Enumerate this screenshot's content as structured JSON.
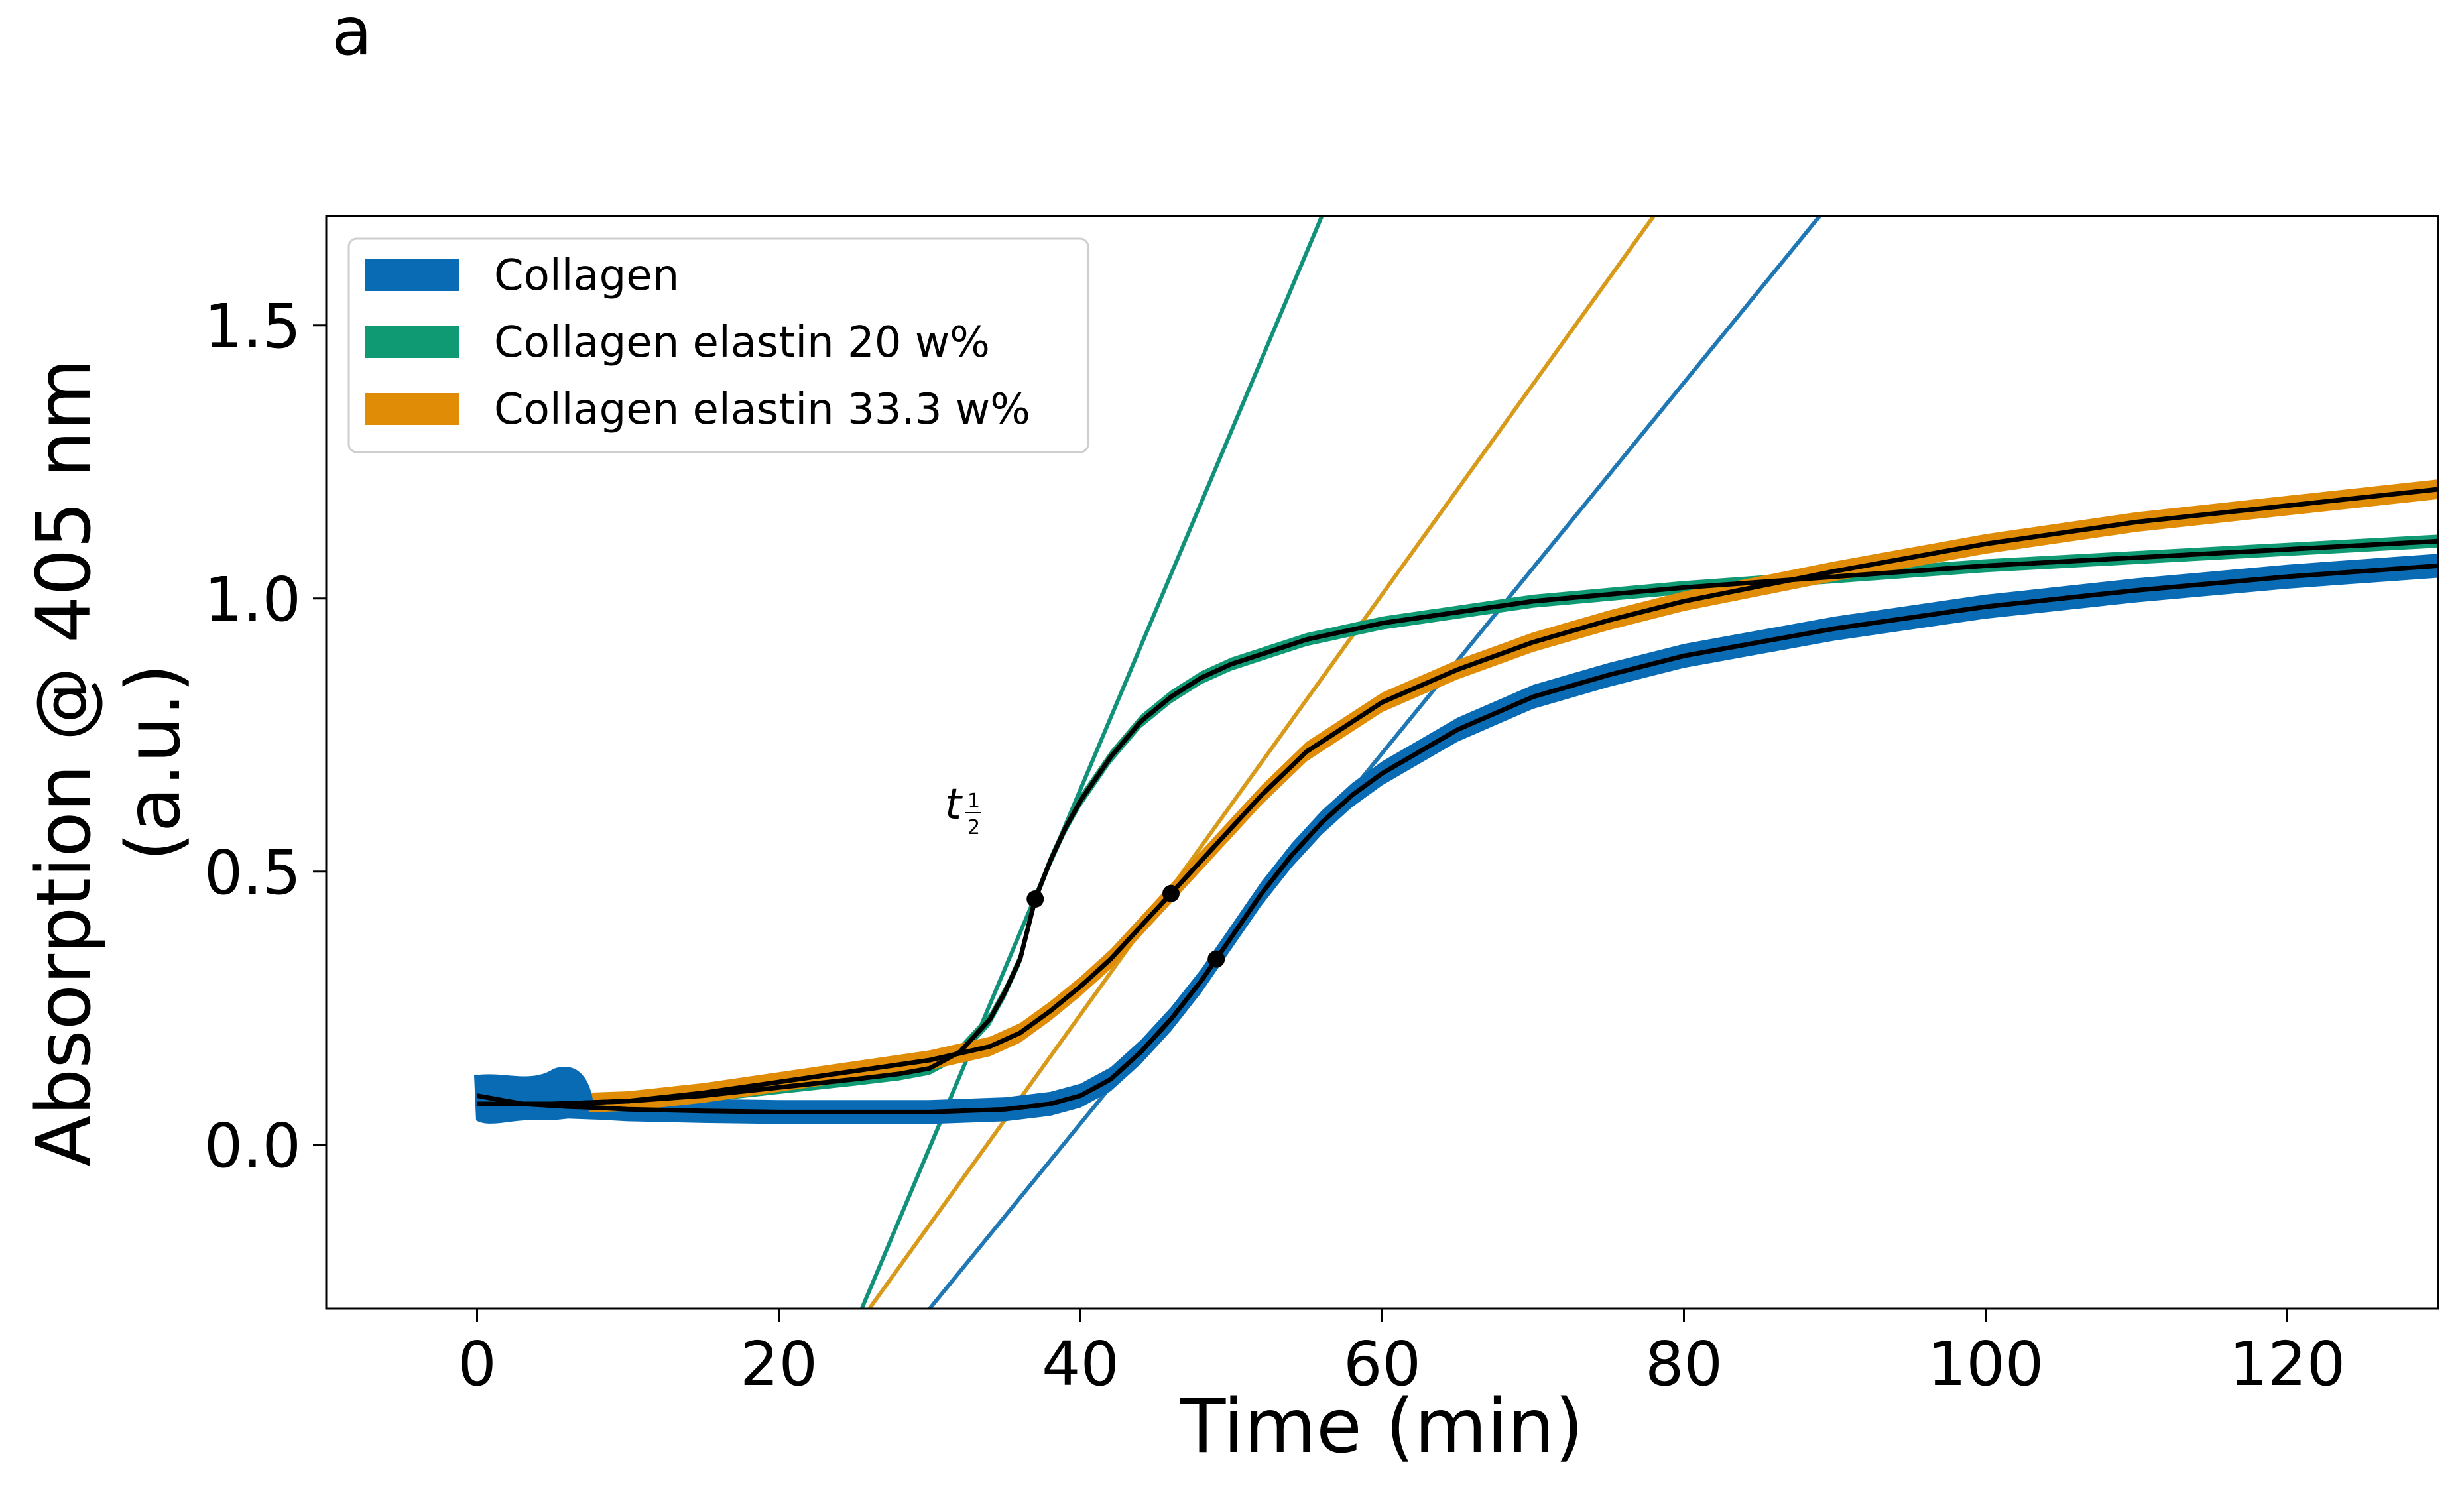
{
  "panel_label": "a",
  "chart_data": {
    "type": "line",
    "title": "",
    "xlabel": "Time (min)",
    "ylabel_line1": "Absorption @ 405 nm",
    "ylabel_line2": "(a.u.)",
    "xlim": [
      -10,
      130
    ],
    "ylim": [
      -0.3,
      1.7
    ],
    "xticks": [
      0,
      20,
      40,
      60,
      80,
      100,
      120
    ],
    "yticks": [
      0.0,
      0.5,
      1.0,
      1.5
    ],
    "grid": false,
    "legend_position": "top-left",
    "annotation": {
      "text": "t",
      "subscript_num": "1",
      "subscript_den": "2",
      "x": 32.5,
      "y": 0.62
    },
    "series": [
      {
        "name": "Collagen",
        "color": "#1f77b4",
        "band": "#0a6bb5",
        "x": [
          0,
          3,
          6,
          8,
          10,
          15,
          20,
          25,
          30,
          35,
          38,
          40,
          42,
          44,
          46,
          48,
          50,
          52,
          54,
          56,
          58,
          60,
          65,
          70,
          75,
          80,
          90,
          100,
          110,
          120,
          130
        ],
        "y": [
          0.09,
          0.075,
          0.07,
          0.068,
          0.065,
          0.062,
          0.06,
          0.06,
          0.06,
          0.065,
          0.075,
          0.09,
          0.12,
          0.17,
          0.23,
          0.3,
          0.38,
          0.46,
          0.53,
          0.59,
          0.64,
          0.68,
          0.76,
          0.82,
          0.86,
          0.895,
          0.945,
          0.985,
          1.015,
          1.04,
          1.06
        ],
        "band_halfwidth": 0.022,
        "t_half": {
          "x": 49,
          "y": 0.34
        },
        "tangent": {
          "x1": 30,
          "y1": -0.3,
          "x2": 89,
          "y2": 1.7
        }
      },
      {
        "name": "Collagen elastin 20 w%",
        "color": "#11917a",
        "band": "#0f9a73",
        "x": [
          0,
          5,
          10,
          15,
          20,
          25,
          28,
          30,
          32,
          34,
          35,
          36,
          37,
          38,
          39,
          40,
          41,
          42,
          44,
          46,
          48,
          50,
          55,
          60,
          70,
          80,
          90,
          100,
          110,
          120,
          130
        ],
        "y": [
          0.075,
          0.075,
          0.08,
          0.09,
          0.105,
          0.12,
          0.13,
          0.14,
          0.17,
          0.23,
          0.28,
          0.34,
          0.45,
          0.52,
          0.58,
          0.63,
          0.67,
          0.71,
          0.775,
          0.82,
          0.855,
          0.88,
          0.925,
          0.955,
          0.995,
          1.02,
          1.04,
          1.06,
          1.075,
          1.09,
          1.105
        ],
        "band_halfwidth": 0.012,
        "t_half": {
          "x": 37,
          "y": 0.45
        },
        "tangent": {
          "x1": 25.5,
          "y1": -0.3,
          "x2": 56,
          "y2": 1.7
        }
      },
      {
        "name": "Collagen elastin 33.3 w%",
        "color": "#d79a1a",
        "band": "#e08c06",
        "x": [
          0,
          5,
          10,
          15,
          20,
          25,
          30,
          34,
          36,
          38,
          40,
          42,
          44,
          46,
          48,
          50,
          52,
          55,
          60,
          65,
          70,
          75,
          80,
          90,
          100,
          110,
          120,
          130
        ],
        "y": [
          0.075,
          0.075,
          0.08,
          0.095,
          0.115,
          0.135,
          0.155,
          0.18,
          0.205,
          0.245,
          0.29,
          0.34,
          0.4,
          0.46,
          0.52,
          0.58,
          0.64,
          0.72,
          0.81,
          0.87,
          0.92,
          0.96,
          0.995,
          1.05,
          1.1,
          1.14,
          1.17,
          1.2
        ],
        "band_halfwidth": 0.018,
        "t_half": {
          "x": 46,
          "y": 0.46
        },
        "tangent": {
          "x1": 26,
          "y1": -0.3,
          "x2": 78,
          "y2": 1.7
        }
      }
    ]
  }
}
